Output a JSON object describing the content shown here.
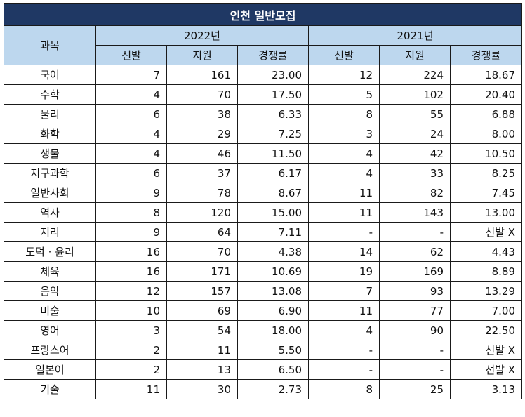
{
  "title": "인천 일반모집",
  "header": {
    "subject": "과목",
    "years": [
      "2022년",
      "2021년"
    ],
    "cols": [
      "선발",
      "지원",
      "경쟁률"
    ]
  },
  "rows": [
    {
      "subject": "국어",
      "y2022": [
        "7",
        "161",
        "23.00"
      ],
      "y2021": [
        "12",
        "224",
        "18.67"
      ]
    },
    {
      "subject": "수학",
      "y2022": [
        "4",
        "70",
        "17.50"
      ],
      "y2021": [
        "5",
        "102",
        "20.40"
      ]
    },
    {
      "subject": "물리",
      "y2022": [
        "6",
        "38",
        "6.33"
      ],
      "y2021": [
        "8",
        "55",
        "6.88"
      ]
    },
    {
      "subject": "화학",
      "y2022": [
        "4",
        "29",
        "7.25"
      ],
      "y2021": [
        "3",
        "24",
        "8.00"
      ]
    },
    {
      "subject": "생물",
      "y2022": [
        "4",
        "46",
        "11.50"
      ],
      "y2021": [
        "4",
        "42",
        "10.50"
      ]
    },
    {
      "subject": "지구과학",
      "y2022": [
        "6",
        "37",
        "6.17"
      ],
      "y2021": [
        "4",
        "33",
        "8.25"
      ]
    },
    {
      "subject": "일반사회",
      "y2022": [
        "9",
        "78",
        "8.67"
      ],
      "y2021": [
        "11",
        "82",
        "7.45"
      ]
    },
    {
      "subject": "역사",
      "y2022": [
        "8",
        "120",
        "15.00"
      ],
      "y2021": [
        "11",
        "143",
        "13.00"
      ]
    },
    {
      "subject": "지리",
      "y2022": [
        "9",
        "64",
        "7.11"
      ],
      "y2021": [
        "-",
        "-",
        "선발 X"
      ]
    },
    {
      "subject": "도덕 · 윤리",
      "y2022": [
        "16",
        "70",
        "4.38"
      ],
      "y2021": [
        "14",
        "62",
        "4.43"
      ]
    },
    {
      "subject": "체육",
      "y2022": [
        "16",
        "171",
        "10.69"
      ],
      "y2021": [
        "19",
        "169",
        "8.89"
      ]
    },
    {
      "subject": "음악",
      "y2022": [
        "12",
        "157",
        "13.08"
      ],
      "y2021": [
        "7",
        "93",
        "13.29"
      ]
    },
    {
      "subject": "미술",
      "y2022": [
        "10",
        "69",
        "6.90"
      ],
      "y2021": [
        "11",
        "77",
        "7.00"
      ]
    },
    {
      "subject": "영어",
      "y2022": [
        "3",
        "54",
        "18.00"
      ],
      "y2021": [
        "4",
        "90",
        "22.50"
      ]
    },
    {
      "subject": "프랑스어",
      "y2022": [
        "2",
        "11",
        "5.50"
      ],
      "y2021": [
        "-",
        "-",
        "선발 X"
      ]
    },
    {
      "subject": "일본어",
      "y2022": [
        "2",
        "13",
        "6.50"
      ],
      "y2021": [
        "-",
        "-",
        "선발 X"
      ]
    },
    {
      "subject": "기술",
      "y2022": [
        "11",
        "30",
        "2.73"
      ],
      "y2021": [
        "8",
        "25",
        "3.13"
      ]
    }
  ]
}
